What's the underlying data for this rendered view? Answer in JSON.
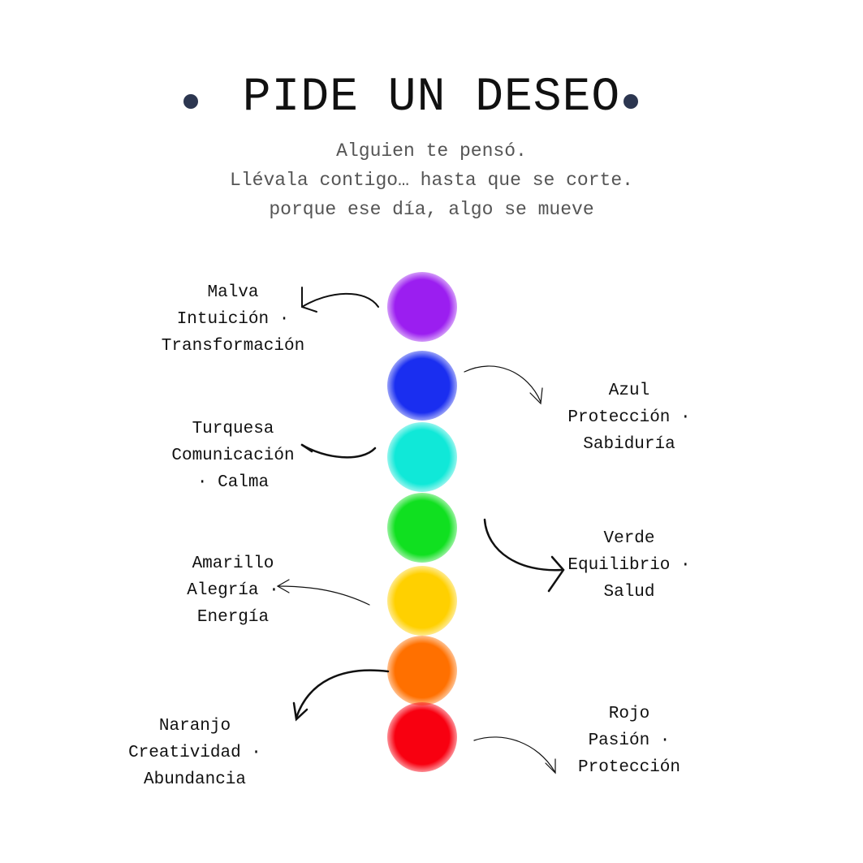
{
  "title": "PIDE UN DESEO",
  "subtitle": [
    "Alguien te pensó.",
    "Llévala contigo… hasta que se corte.",
    "porque ese día, algo se mueve"
  ],
  "accent_dot_color": "#2c3650",
  "beads": [
    {
      "name": "Malva",
      "color": "#9b1ef0",
      "lines": [
        "Malva",
        "Intuición ·",
        "Transformación"
      ]
    },
    {
      "name": "Azul",
      "color": "#1a2ef0",
      "lines": [
        "Azul",
        "Protección ·",
        "Sabiduría"
      ]
    },
    {
      "name": "Turquesa",
      "color": "#10e8d8",
      "lines": [
        "Turquesa",
        "Comunicación",
        "· Calma"
      ]
    },
    {
      "name": "Verde",
      "color": "#10e020",
      "lines": [
        "Verde",
        "Equilibrio ·",
        "Salud"
      ]
    },
    {
      "name": "Amarillo",
      "color": "#ffd000",
      "lines": [
        "Amarillo",
        "Alegría ·",
        "Energía"
      ]
    },
    {
      "name": "Naranjo",
      "color": "#ff7000",
      "lines": [
        "Naranjo",
        "Creatividad ·",
        "Abundancia"
      ]
    },
    {
      "name": "Rojo",
      "color": "#f80010",
      "lines": [
        "Rojo",
        "Pasión ·",
        "Protección"
      ]
    }
  ]
}
